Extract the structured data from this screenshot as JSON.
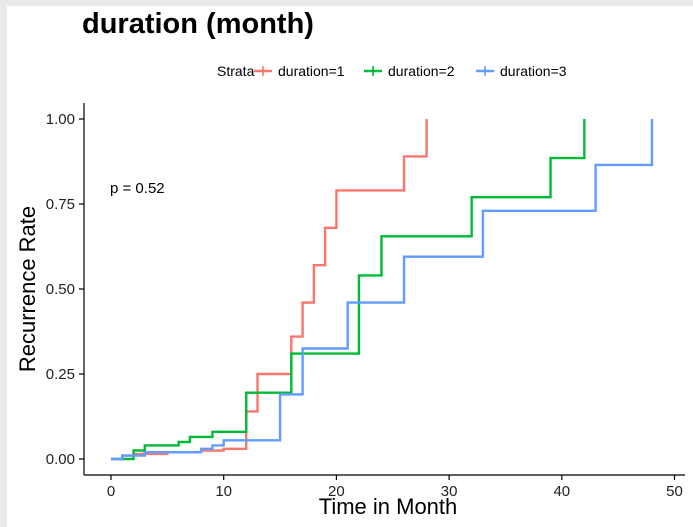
{
  "chart_data": {
    "type": "line",
    "title": "duration (month)",
    "xlabel": "Time in Month",
    "ylabel": "Recurrence Rate",
    "xlim": [
      -2,
      52
    ],
    "ylim": [
      0,
      1
    ],
    "x_ticks": [
      "0",
      "10",
      "20",
      "30",
      "40",
      "50"
    ],
    "y_ticks": [
      "0.00",
      "0.25",
      "0.50",
      "0.75",
      "1.00"
    ],
    "grid": false,
    "legend_title": "Strata",
    "legend_position": "top",
    "annotation": "p = 0.52",
    "series": [
      {
        "name": "duration=1",
        "color": "#f8766d",
        "x": [
          0,
          1,
          2,
          5,
          8,
          10,
          12,
          13,
          16,
          17,
          18,
          19,
          20,
          26,
          28
        ],
        "y": [
          0,
          0.01,
          0.015,
          0.02,
          0.025,
          0.03,
          0.14,
          0.25,
          0.36,
          0.46,
          0.57,
          0.68,
          0.79,
          0.89,
          1.0
        ]
      },
      {
        "name": "duration=2",
        "color": "#00ba38",
        "x": [
          0,
          2,
          3,
          6,
          7,
          9,
          12,
          16,
          22,
          24,
          32,
          39,
          42
        ],
        "y": [
          0,
          0.025,
          0.04,
          0.05,
          0.065,
          0.08,
          0.195,
          0.31,
          0.54,
          0.655,
          0.77,
          0.885,
          1.0
        ]
      },
      {
        "name": "duration=3",
        "color": "#619cff",
        "x": [
          0,
          1,
          3,
          8,
          9,
          10,
          15,
          17,
          21,
          26,
          33,
          43,
          48
        ],
        "y": [
          0,
          0.01,
          0.02,
          0.03,
          0.04,
          0.055,
          0.19,
          0.325,
          0.46,
          0.595,
          0.73,
          0.865,
          1.0
        ]
      }
    ]
  }
}
